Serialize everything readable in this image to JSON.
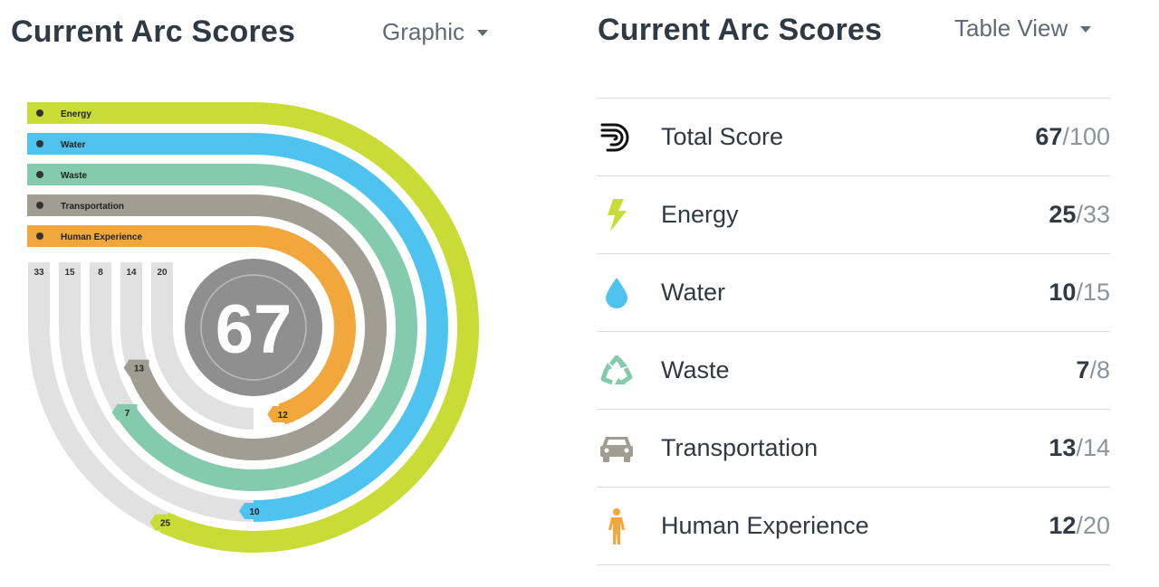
{
  "left_panel": {
    "title": "Current Arc Scores",
    "view_selector": "Graphic"
  },
  "right_panel": {
    "title": "Current Arc Scores",
    "view_selector": "Table View"
  },
  "total": {
    "label": "Total Score",
    "score": "67",
    "max": "100"
  },
  "categories": [
    {
      "key": "energy",
      "label": "Energy",
      "score": "25",
      "max": "33",
      "color": "#c9db35",
      "icon": "lightning-bolt-icon"
    },
    {
      "key": "water",
      "label": "Water",
      "score": "10",
      "max": "15",
      "color": "#4fc3f0",
      "icon": "water-drop-icon"
    },
    {
      "key": "waste",
      "label": "Waste",
      "score": "7",
      "max": "8",
      "color": "#84cbad",
      "icon": "recycle-icon"
    },
    {
      "key": "transportation",
      "label": "Transportation",
      "score": "13",
      "max": "14",
      "color": "#a19d92",
      "icon": "car-icon"
    },
    {
      "key": "human",
      "label": "Human Experience",
      "score": "12",
      "max": "20",
      "color": "#f1a73b",
      "icon": "person-icon"
    }
  ],
  "colors": {
    "track": "#e1e1e1",
    "center": "#8f8f8f",
    "total_icon": "#111111"
  }
}
